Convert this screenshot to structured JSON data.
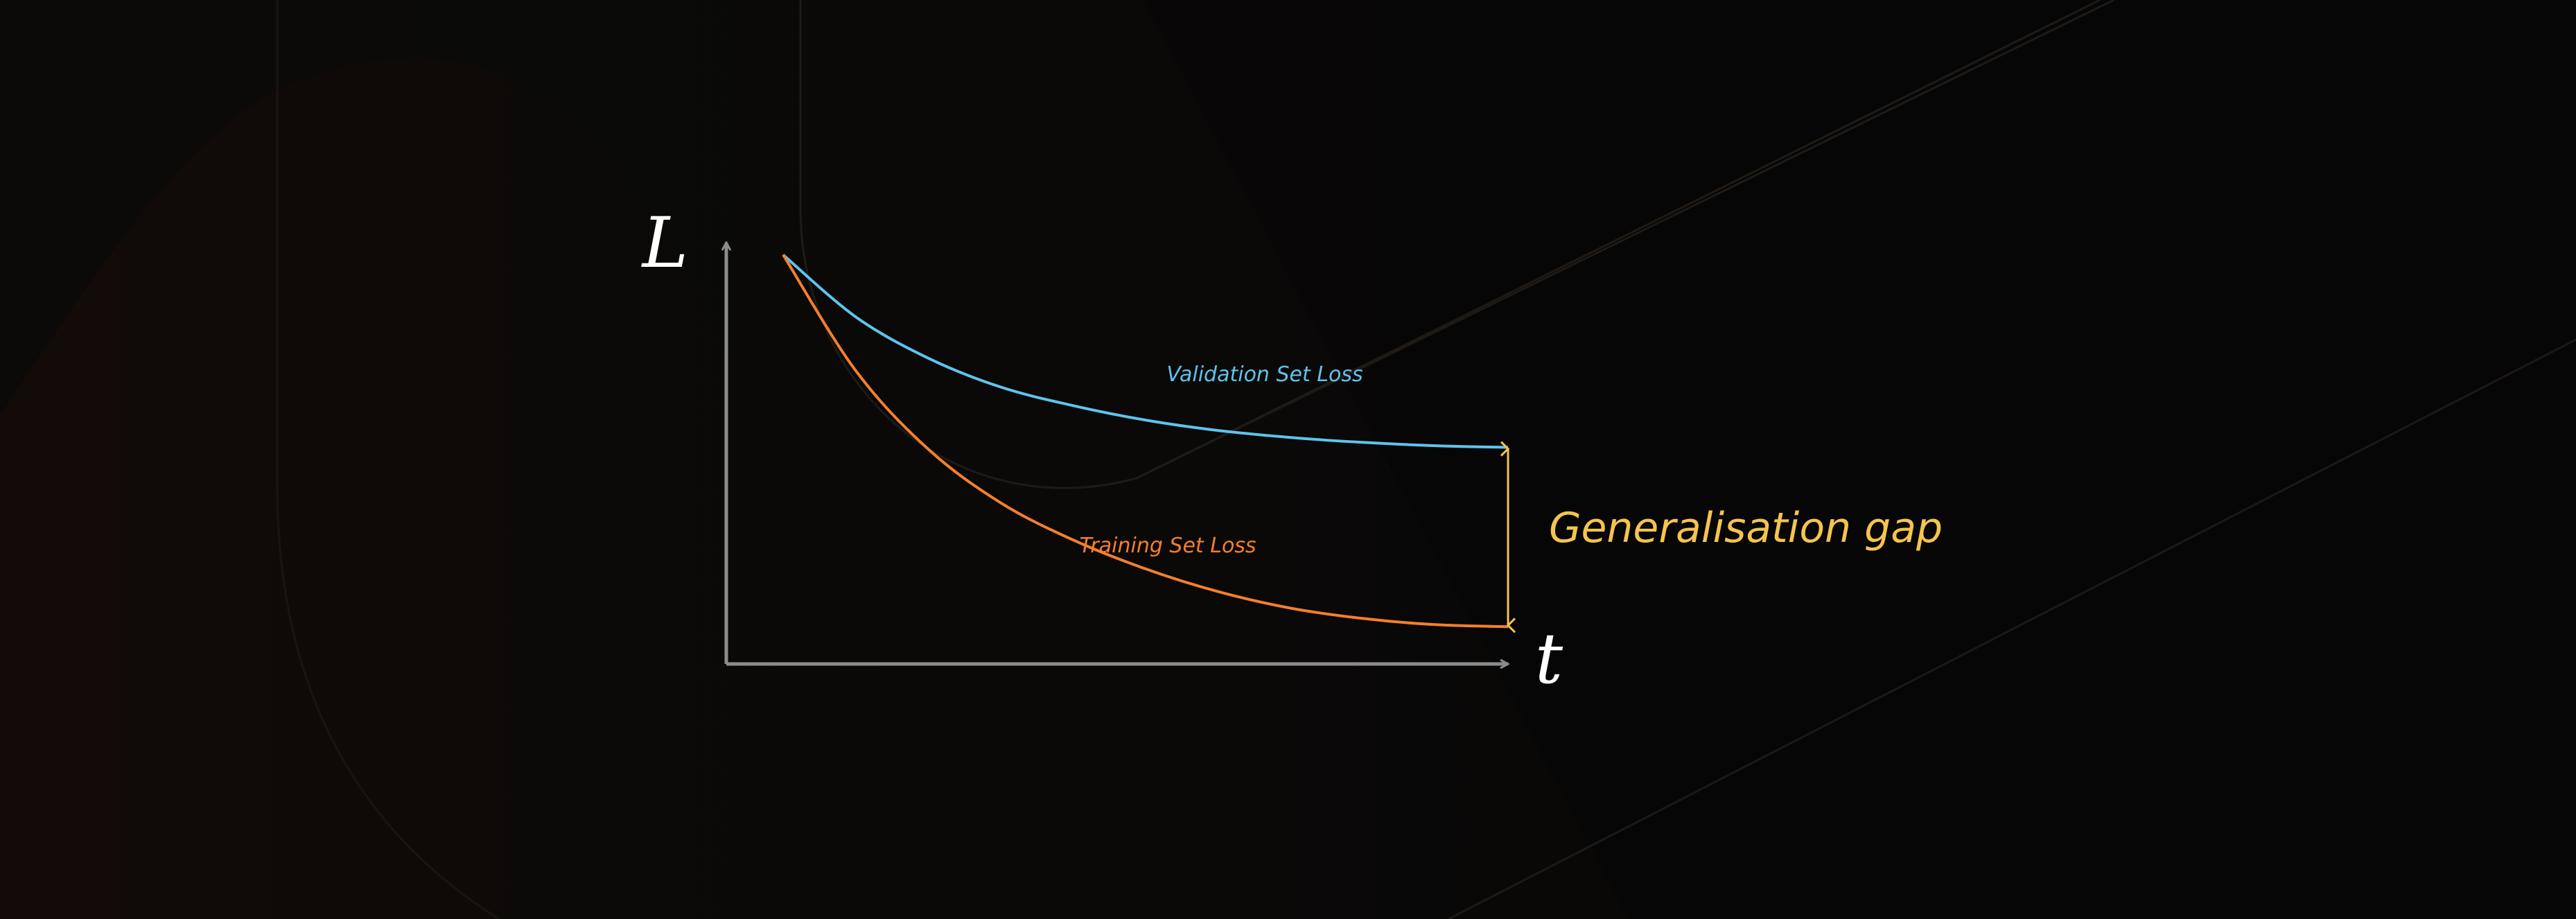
{
  "chart_data": {
    "type": "line",
    "xlabel": "t",
    "ylabel": "L",
    "series": [
      {
        "name": "Validation Set Loss",
        "color": "#5ec4ec",
        "points": [
          [
            0,
            0.99
          ],
          [
            1,
            0.84
          ],
          [
            2,
            0.74
          ],
          [
            3,
            0.67
          ],
          [
            4,
            0.625
          ],
          [
            5,
            0.59
          ],
          [
            6,
            0.565
          ],
          [
            7,
            0.548
          ],
          [
            8,
            0.536
          ],
          [
            9,
            0.528
          ],
          [
            10,
            0.524
          ]
        ]
      },
      {
        "name": "Training Set Loss",
        "color": "#f57f2b",
        "points": [
          [
            0,
            0.99
          ],
          [
            1,
            0.71
          ],
          [
            2,
            0.52
          ],
          [
            3,
            0.39
          ],
          [
            4,
            0.3
          ],
          [
            5,
            0.23
          ],
          [
            6,
            0.175
          ],
          [
            7,
            0.135
          ],
          [
            8,
            0.11
          ],
          [
            9,
            0.095
          ],
          [
            10,
            0.09
          ]
        ]
      }
    ],
    "xlim": [
      0,
      10.8
    ],
    "ylim": [
      0,
      1.1
    ],
    "annotation": {
      "text": "Generalisation gap",
      "color": "#f5c44e",
      "from": [
        10,
        0.524
      ],
      "to": [
        10,
        0.09
      ]
    },
    "axis_color": "#8c8c8c",
    "grid": false,
    "legend": "none"
  }
}
